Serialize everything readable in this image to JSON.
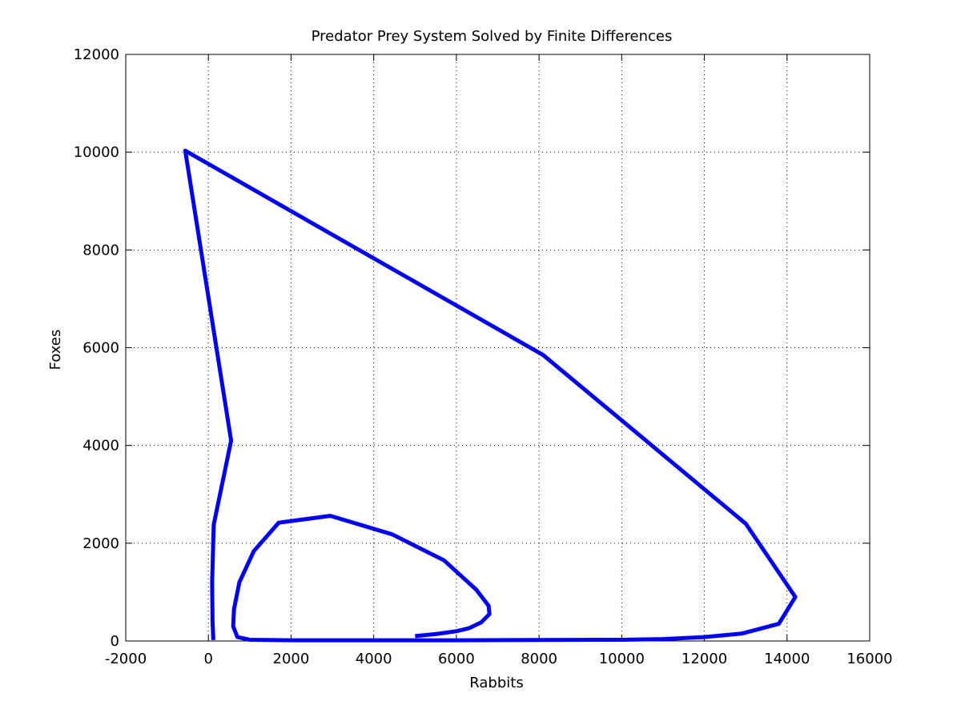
{
  "chart_data": {
    "type": "line",
    "title": "Predator Prey System Solved by Finite Differences",
    "xlabel": "Rabbits",
    "ylabel": "Foxes",
    "xlim": [
      -2000,
      16000
    ],
    "ylim": [
      0,
      12000
    ],
    "xticks": [
      -2000,
      0,
      2000,
      4000,
      6000,
      8000,
      10000,
      12000,
      14000,
      16000
    ],
    "yticks": [
      0,
      2000,
      4000,
      6000,
      8000,
      10000,
      12000
    ],
    "grid": true,
    "line_color": "#0000ff",
    "series": [
      {
        "points": [
          [
            5000,
            100
          ],
          [
            5500,
            140
          ],
          [
            6000,
            200
          ],
          [
            6300,
            260
          ],
          [
            6600,
            380
          ],
          [
            6800,
            550
          ],
          [
            6780,
            720
          ],
          [
            6480,
            1050
          ],
          [
            5700,
            1650
          ],
          [
            4450,
            2180
          ],
          [
            2950,
            2560
          ],
          [
            1700,
            2420
          ],
          [
            1100,
            1840
          ],
          [
            750,
            1200
          ],
          [
            620,
            650
          ],
          [
            600,
            300
          ],
          [
            700,
            80
          ],
          [
            1000,
            25
          ],
          [
            2000,
            15
          ],
          [
            4000,
            15
          ],
          [
            6000,
            15
          ],
          [
            8000,
            20
          ],
          [
            10000,
            25
          ],
          [
            11000,
            40
          ],
          [
            12000,
            80
          ],
          [
            12900,
            150
          ],
          [
            13800,
            350
          ],
          [
            14200,
            900
          ],
          [
            13000,
            2400
          ],
          [
            8100,
            5850
          ],
          [
            -560,
            10030
          ],
          [
            550,
            4100
          ],
          [
            130,
            2380
          ],
          [
            90,
            1200
          ],
          [
            100,
            400
          ],
          [
            120,
            20
          ]
        ]
      }
    ]
  }
}
